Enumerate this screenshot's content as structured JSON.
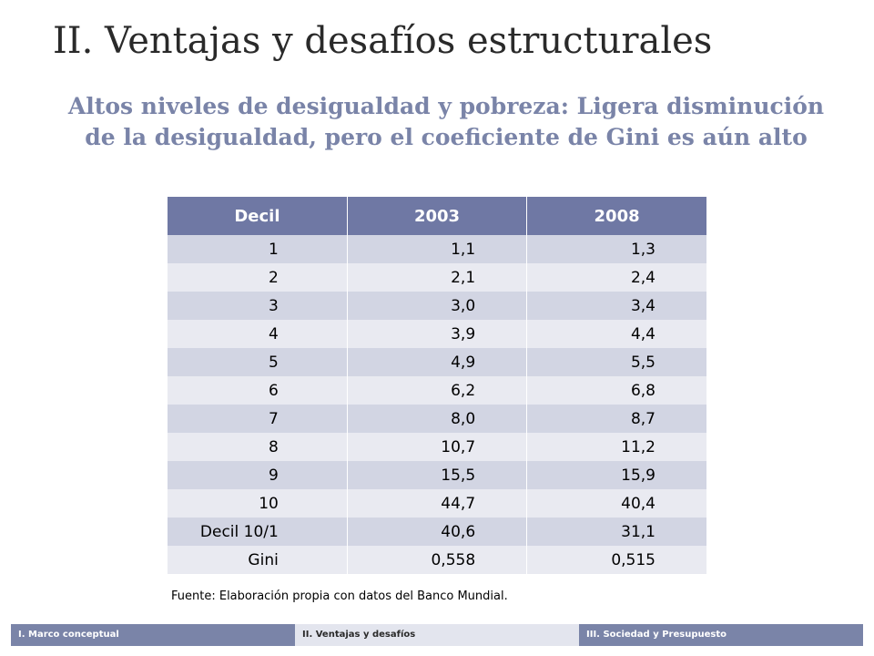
{
  "slide": {
    "title": "II. Ventajas y desafíos estructurales",
    "subtitle": "Altos niveles de desigualdad y pobreza: Ligera disminución de la desigualdad, pero el coeficiente de Gini es aún alto"
  },
  "table": {
    "headers": [
      "Decil",
      "2003",
      "2008"
    ],
    "rows": [
      [
        "1",
        "1,1",
        "1,3"
      ],
      [
        "2",
        "2,1",
        "2,4"
      ],
      [
        "3",
        "3,0",
        "3,4"
      ],
      [
        "4",
        "3,9",
        "4,4"
      ],
      [
        "5",
        "4,9",
        "5,5"
      ],
      [
        "6",
        "6,2",
        "6,8"
      ],
      [
        "7",
        "8,0",
        "8,7"
      ],
      [
        "8",
        "10,7",
        "11,2"
      ],
      [
        "9",
        "15,5",
        "15,9"
      ],
      [
        "10",
        "44,7",
        "40,4"
      ],
      [
        "Decil 10/1",
        "40,6",
        "31,1"
      ],
      [
        "Gini",
        "0,558",
        "0,515"
      ]
    ]
  },
  "source": "Fuente: Elaboración propia con datos del Banco Mundial.",
  "footer": {
    "items": [
      "I. Marco conceptual",
      "II. Ventajas y desafíos",
      "III. Sociedad y Presupuesto"
    ]
  },
  "colors": {
    "header_bg": "#6f78a4",
    "row_odd": "#d2d5e3",
    "row_even": "#e9eaf1",
    "subtitle": "#7a84a8"
  }
}
